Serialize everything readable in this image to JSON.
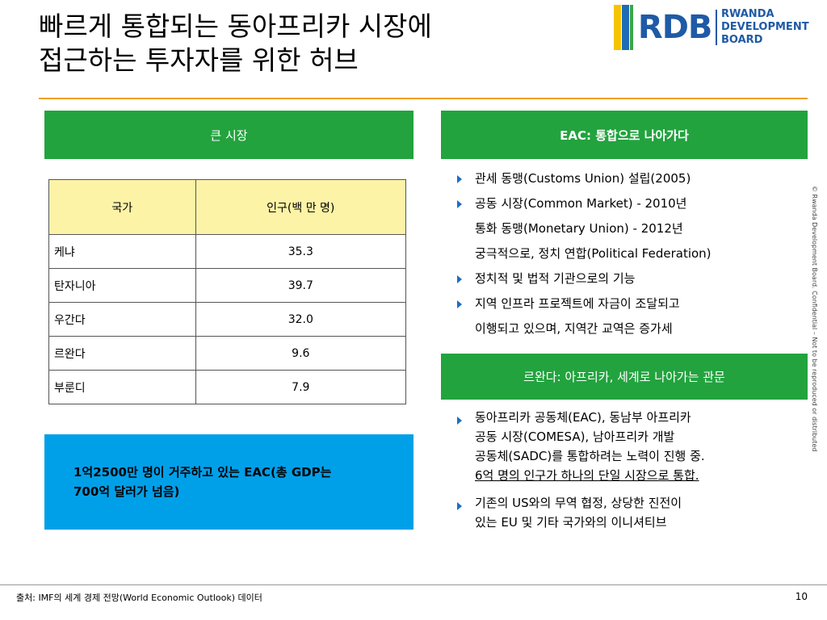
{
  "header": {
    "title_lines": [
      "빠르게 통합되는 동아프리카 시장에",
      "접근하는 투자자를 위한 허브"
    ],
    "logo": {
      "mark": "RDB",
      "lines": [
        "RWANDA",
        "DEVELOPMENT BOARD"
      ]
    }
  },
  "left": {
    "heading": "큰 시장",
    "table": {
      "columns": [
        "국가",
        "인구(백 만 명)"
      ],
      "rows": [
        [
          "케냐",
          "35.3"
        ],
        [
          "탄자니아",
          "39.7"
        ],
        [
          "우간다",
          "32.0"
        ],
        [
          "르완다",
          "9.6"
        ],
        [
          "부룬디",
          "7.9"
        ]
      ]
    },
    "callout": [
      "1억2500만 명이 거주하고 있는 EAC(총 GDP는",
      "700억 달러가 넘음)"
    ]
  },
  "right": {
    "sections": [
      {
        "heading": "EAC: 통합으로 나아가다",
        "bullets": [
          [
            "관세 동맹(Customs Union) 설립(2005)"
          ],
          [
            "공동 시장(Common Market) - 2010년",
            "통화 동맹(Monetary Union) - 2012년",
            "궁극적으로, 정치 연합(Political Federation)"
          ],
          [
            "정치적 및 법적 기관으로의 기능"
          ],
          [
            "지역 인프라 프로젝트에 자금이 조달되고",
            "이행되고 있으며, 지역간 교역은 증가세"
          ]
        ]
      },
      {
        "heading": "르완다: 아프리카, 세계로 나아가는 관문",
        "bullets": [
          [
            "동아프리카 공동체(EAC), 동남부 아프리카",
            "공동 시장(COMESA), 남아프리카 개발",
            "공동체(SADC)를 통합하려는 노력이 진행 중.",
            "6억 명의 인구가 하나의 단일 시장으로 통합."
          ],
          [
            "기존의 US와의 무역 협정, 상당한 진전이",
            "있는 EU 및 기타 국가와의 이니셔티브"
          ]
        ]
      }
    ]
  },
  "side_note": "© Rwanda Development Board. Confidential – Not to be reproduced or distributed",
  "footer": {
    "source": "출처: IMF의 세계 경제 전망(World Economic Outlook) 데이터",
    "page": "10"
  }
}
